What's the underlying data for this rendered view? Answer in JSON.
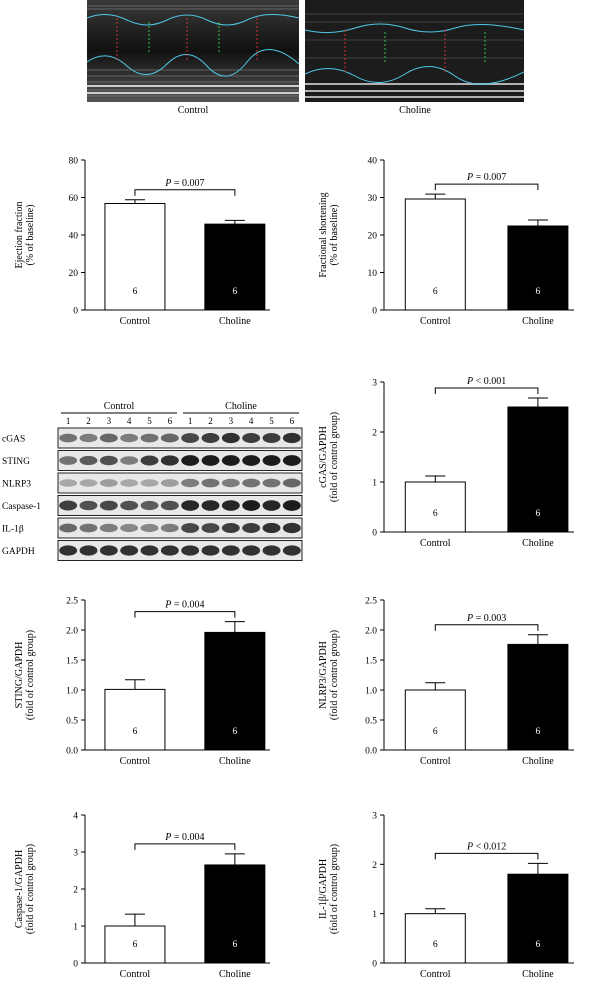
{
  "echo": {
    "labels": [
      "Control",
      "Choline"
    ]
  },
  "western_blot": {
    "groups": [
      "Control",
      "Choline"
    ],
    "lanes": [
      "1",
      "2",
      "3",
      "4",
      "5",
      "6"
    ],
    "bands": [
      "cGAS",
      "STING",
      "NLRP3",
      "Caspase-1",
      "IL-1β",
      "GAPDH"
    ]
  },
  "chart_data": [
    {
      "type": "bar",
      "ylabel": "Ejection fraction (% of baseline)",
      "categories": [
        "Control",
        "Choline"
      ],
      "values": [
        56.8,
        45.8
      ],
      "errors": [
        2.0,
        2.0
      ],
      "n": [
        "6",
        "6"
      ],
      "ylim": [
        0,
        80
      ],
      "yticks": [
        "0",
        "20",
        "40",
        "60",
        "80"
      ],
      "annotation": "P = 0.007",
      "bar_colors": [
        "#ffffff",
        "#000000"
      ]
    },
    {
      "type": "bar",
      "ylabel": "Fractional shortening (% of baseline)",
      "categories": [
        "Control",
        "Choline"
      ],
      "values": [
        29.6,
        22.4
      ],
      "errors": [
        1.3,
        1.6
      ],
      "n": [
        "6",
        "6"
      ],
      "ylim": [
        0,
        40
      ],
      "yticks": [
        "0",
        "10",
        "20",
        "30",
        "40"
      ],
      "annotation": "P = 0.007",
      "bar_colors": [
        "#ffffff",
        "#000000"
      ]
    },
    {
      "type": "bar",
      "ylabel": "cGAS/GAPDH (fold of control group)",
      "categories": [
        "Control",
        "Choline"
      ],
      "values": [
        1.0,
        2.5
      ],
      "errors": [
        0.12,
        0.18
      ],
      "n": [
        "6",
        "6"
      ],
      "ylim": [
        0,
        3
      ],
      "yticks": [
        "0",
        "1",
        "2",
        "3"
      ],
      "annotation": "P < 0.001",
      "bar_colors": [
        "#ffffff",
        "#000000"
      ]
    },
    {
      "type": "bar",
      "ylabel": "STING/GAPDH (fold of control group)",
      "categories": [
        "Control",
        "Choline"
      ],
      "values": [
        1.01,
        1.96
      ],
      "errors": [
        0.16,
        0.18
      ],
      "n": [
        "6",
        "6"
      ],
      "ylim": [
        0,
        2.5
      ],
      "yticks": [
        "0.0",
        "0.5",
        "1.0",
        "1.5",
        "2.0",
        "2.5"
      ],
      "annotation": "P = 0.004",
      "bar_colors": [
        "#ffffff",
        "#000000"
      ]
    },
    {
      "type": "bar",
      "ylabel": "NLRP3/GAPDH (fold of control group)",
      "categories": [
        "Control",
        "Choline"
      ],
      "values": [
        1.0,
        1.76
      ],
      "errors": [
        0.12,
        0.16
      ],
      "n": [
        "6",
        "6"
      ],
      "ylim": [
        0,
        2.5
      ],
      "yticks": [
        "0.0",
        "0.5",
        "1.0",
        "1.5",
        "2.0",
        "2.5"
      ],
      "annotation": "P = 0.003",
      "bar_colors": [
        "#ffffff",
        "#000000"
      ]
    },
    {
      "type": "bar",
      "ylabel": "Caspase-1/GAPDH (fold of control group)",
      "categories": [
        "Control",
        "Choline"
      ],
      "values": [
        1.0,
        2.65
      ],
      "errors": [
        0.32,
        0.3
      ],
      "n": [
        "6",
        "6"
      ],
      "ylim": [
        0,
        4
      ],
      "yticks": [
        "0",
        "1",
        "2",
        "3",
        "4"
      ],
      "annotation": "P = 0.004",
      "bar_colors": [
        "#ffffff",
        "#000000"
      ]
    },
    {
      "type": "bar",
      "ylabel": "IL-1β/GAPDH (fold of control group)",
      "categories": [
        "Control",
        "Choline"
      ],
      "values": [
        1.0,
        1.8
      ],
      "errors": [
        0.1,
        0.22
      ],
      "n": [
        "6",
        "6"
      ],
      "ylim": [
        0,
        3
      ],
      "yticks": [
        "0",
        "1",
        "2",
        "3"
      ],
      "annotation": "P < 0.012",
      "bar_colors": [
        "#ffffff",
        "#000000"
      ]
    }
  ]
}
